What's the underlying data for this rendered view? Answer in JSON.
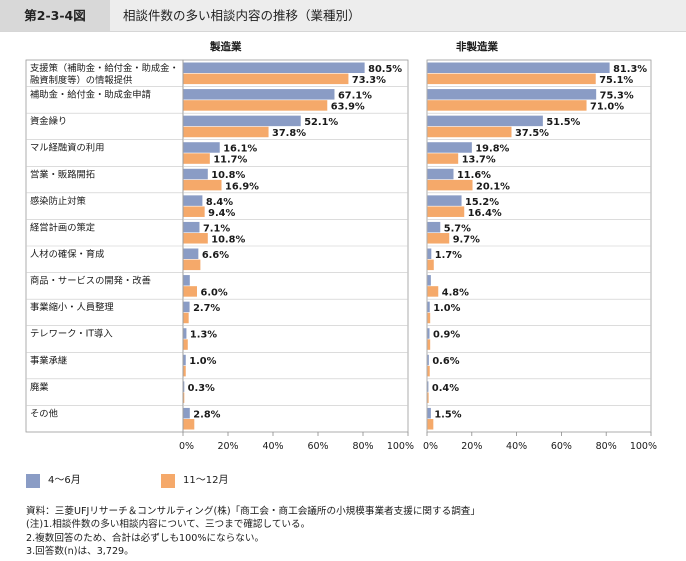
{
  "header": {
    "figure_number": "第2-3-4図",
    "title": "相談件数の多い相談内容の推移（業種別）"
  },
  "chart_data": [
    {
      "type": "bar",
      "orientation": "horizontal",
      "title": "製造業",
      "categories": [
        "支援策（補助金・給付金・助成金・融資制度等）の情報提供",
        "補助金・給付金・助成金申請",
        "資金繰り",
        "マル経融資の利用",
        "営業・販路開拓",
        "感染防止対策",
        "経営計画の策定",
        "人材の確保・育成",
        "商品・サービスの開発・改善",
        "事業縮小・人員整理",
        "テレワーク・IT導入",
        "事業承継",
        "廃業",
        "その他"
      ],
      "series": [
        {
          "name": "4～6月",
          "values": [
            80.5,
            67.1,
            52.1,
            16.1,
            10.8,
            8.4,
            7.1,
            6.6,
            2.8,
            2.7,
            1.3,
            1.0,
            0.3,
            2.8
          ],
          "labels": [
            "80.5%",
            "67.1%",
            "52.1%",
            "16.1%",
            "10.8%",
            "8.4%",
            "7.1%",
            "6.6%",
            "",
            "2.7%",
            "1.3%",
            "1.0%",
            "0.3%",
            "2.8%"
          ]
        },
        {
          "name": "11～12月",
          "values": [
            73.3,
            63.9,
            37.8,
            11.7,
            16.9,
            9.4,
            10.8,
            7.5,
            6.0,
            2.3,
            1.9,
            1.0,
            0.2,
            4.8
          ],
          "labels": [
            "73.3%",
            "63.9%",
            "37.8%",
            "11.7%",
            "16.9%",
            "9.4%",
            "10.8%",
            "",
            "6.0%",
            "",
            "",
            "",
            "",
            ""
          ]
        }
      ],
      "xlim": [
        0,
        100
      ],
      "xticks": [
        "0%",
        "20%",
        "40%",
        "60%",
        "80%",
        "100%"
      ]
    },
    {
      "type": "bar",
      "orientation": "horizontal",
      "title": "非製造業",
      "series": [
        {
          "name": "4～6月",
          "values": [
            81.3,
            75.3,
            51.5,
            19.8,
            11.6,
            15.2,
            5.7,
            1.7,
            1.5,
            1.0,
            0.9,
            0.6,
            0.4,
            1.5
          ],
          "labels": [
            "81.3%",
            "75.3%",
            "51.5%",
            "19.8%",
            "11.6%",
            "15.2%",
            "5.7%",
            "1.7%",
            "",
            "1.0%",
            "0.9%",
            "0.6%",
            "0.4%",
            "1.5%"
          ]
        },
        {
          "name": "11～12月",
          "values": [
            75.1,
            71.0,
            37.5,
            13.7,
            20.1,
            16.4,
            9.7,
            2.8,
            4.8,
            1.2,
            1.2,
            1.0,
            0.5,
            2.6
          ],
          "labels": [
            "75.1%",
            "71.0%",
            "37.5%",
            "13.7%",
            "20.1%",
            "16.4%",
            "9.7%",
            "",
            "4.8%",
            "",
            "",
            "",
            "",
            ""
          ]
        }
      ],
      "xlim": [
        0,
        100
      ],
      "xticks": [
        "0%",
        "20%",
        "40%",
        "60%",
        "80%",
        "100%"
      ]
    }
  ],
  "category_display": [
    [
      "支援策（補助金・給付金・助成金・",
      "融資制度等）の情報提供"
    ],
    [
      "補助金・給付金・助成金申請"
    ],
    [
      "資金繰り"
    ],
    [
      "マル経融資の利用"
    ],
    [
      "営業・販路開拓"
    ],
    [
      "感染防止対策"
    ],
    [
      "経営計画の策定"
    ],
    [
      "人材の確保・育成"
    ],
    [
      "商品・サービスの開発・改善"
    ],
    [
      "事業縮小・人員整理"
    ],
    [
      "テレワーク・IT導入"
    ],
    [
      "事業承継"
    ],
    [
      "廃業"
    ],
    [
      "その他"
    ]
  ],
  "legend": [
    {
      "label": "4～6月",
      "color": "#8a9cc5"
    },
    {
      "label": "11～12月",
      "color": "#f5a96a"
    }
  ],
  "notes": [
    "資料：三菱UFJリサーチ＆コンサルティング(株)「商工会・商工会議所の小規模事業者支援に関する調査」",
    "(注)1.相談件数の多い相談内容について、三つまで確認している。",
    "2.複数回答のため、合計は必ずしも100%にならない。",
    "3.回答数(n)は、3,729。"
  ]
}
